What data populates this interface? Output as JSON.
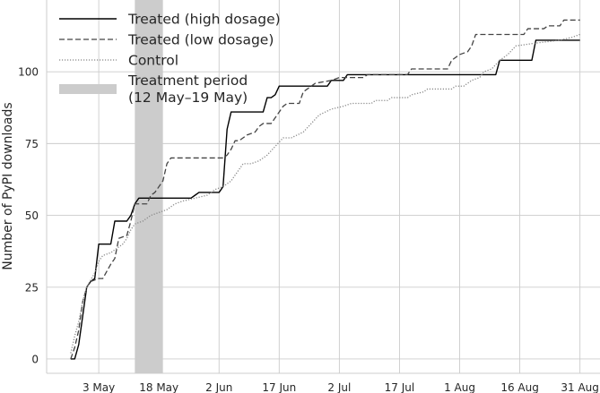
{
  "chart_data": {
    "type": "line",
    "title": "",
    "xlabel": "",
    "ylabel": "Number of PyPI downloads",
    "xlim": [
      "2023-04-20",
      "2023-09-05"
    ],
    "ylim": [
      -5,
      125
    ],
    "grid": true,
    "legend_position": "top-left",
    "x_ticks": [
      {
        "date": "2023-05-03",
        "label": "3 May"
      },
      {
        "date": "2023-05-18",
        "label": "18 May"
      },
      {
        "date": "2023-06-02",
        "label": "2 Jun"
      },
      {
        "date": "2023-06-17",
        "label": "17 Jun"
      },
      {
        "date": "2023-07-02",
        "label": "2 Jul"
      },
      {
        "date": "2023-07-17",
        "label": "17 Jul"
      },
      {
        "date": "2023-08-01",
        "label": "1 Aug"
      },
      {
        "date": "2023-08-16",
        "label": "16 Aug"
      },
      {
        "date": "2023-08-31",
        "label": "31 Aug"
      }
    ],
    "y_ticks": [
      {
        "value": 0,
        "label": "0"
      },
      {
        "value": 25,
        "label": "25"
      },
      {
        "value": 50,
        "label": "50"
      },
      {
        "value": 75,
        "label": "75"
      },
      {
        "value": 100,
        "label": "100"
      }
    ],
    "treatment_period": {
      "start": "2023-05-12",
      "end": "2023-05-19",
      "label_lines": [
        "Treatment period",
        "(12 May–19 May)"
      ],
      "color": "#cccccc"
    },
    "series": [
      {
        "name": "Treated (high dosage)",
        "color": "#000000",
        "style": "solid",
        "points": [
          [
            "2023-04-26",
            0
          ],
          [
            "2023-04-27",
            0
          ],
          [
            "2023-04-28",
            5
          ],
          [
            "2023-04-29",
            15
          ],
          [
            "2023-04-30",
            25
          ],
          [
            "2023-05-01",
            27
          ],
          [
            "2023-05-02",
            28
          ],
          [
            "2023-05-03",
            40
          ],
          [
            "2023-05-06",
            40
          ],
          [
            "2023-05-07",
            48
          ],
          [
            "2023-05-10",
            48
          ],
          [
            "2023-05-11",
            50
          ],
          [
            "2023-05-12",
            54
          ],
          [
            "2023-05-13",
            56
          ],
          [
            "2023-05-20",
            56
          ],
          [
            "2023-05-26",
            56
          ],
          [
            "2023-05-27",
            57
          ],
          [
            "2023-05-28",
            58
          ],
          [
            "2023-06-02",
            58
          ],
          [
            "2023-06-03",
            60
          ],
          [
            "2023-06-04",
            80
          ],
          [
            "2023-06-05",
            86
          ],
          [
            "2023-06-13",
            86
          ],
          [
            "2023-06-14",
            91
          ],
          [
            "2023-06-15",
            91
          ],
          [
            "2023-06-16",
            92
          ],
          [
            "2023-06-17",
            95
          ],
          [
            "2023-06-29",
            95
          ],
          [
            "2023-06-30",
            97
          ],
          [
            "2023-07-03",
            97
          ],
          [
            "2023-07-04",
            99
          ],
          [
            "2023-08-10",
            99
          ],
          [
            "2023-08-11",
            104
          ],
          [
            "2023-08-19",
            104
          ],
          [
            "2023-08-20",
            111
          ],
          [
            "2023-08-31",
            111
          ]
        ]
      },
      {
        "name": "Treated (low dosage)",
        "color": "#444444",
        "style": "dashed",
        "points": [
          [
            "2023-04-26",
            0
          ],
          [
            "2023-04-27",
            4
          ],
          [
            "2023-04-28",
            10
          ],
          [
            "2023-04-29",
            20
          ],
          [
            "2023-04-30",
            25
          ],
          [
            "2023-05-01",
            27
          ],
          [
            "2023-05-03",
            28
          ],
          [
            "2023-05-04",
            28
          ],
          [
            "2023-05-06",
            33
          ],
          [
            "2023-05-07",
            35
          ],
          [
            "2023-05-08",
            42
          ],
          [
            "2023-05-10",
            43
          ],
          [
            "2023-05-11",
            48
          ],
          [
            "2023-05-12",
            54
          ],
          [
            "2023-05-15",
            54
          ],
          [
            "2023-05-16",
            57
          ],
          [
            "2023-05-17",
            58
          ],
          [
            "2023-05-19",
            62
          ],
          [
            "2023-05-20",
            68
          ],
          [
            "2023-05-21",
            70
          ],
          [
            "2023-06-03",
            70
          ],
          [
            "2023-06-04",
            71
          ],
          [
            "2023-06-05",
            73
          ],
          [
            "2023-06-06",
            76
          ],
          [
            "2023-06-07",
            76
          ],
          [
            "2023-06-09",
            78
          ],
          [
            "2023-06-11",
            79
          ],
          [
            "2023-06-12",
            81
          ],
          [
            "2023-06-13",
            82
          ],
          [
            "2023-06-15",
            82
          ],
          [
            "2023-06-16",
            84
          ],
          [
            "2023-06-17",
            86
          ],
          [
            "2023-06-18",
            88
          ],
          [
            "2023-06-19",
            89
          ],
          [
            "2023-06-22",
            89
          ],
          [
            "2023-06-23",
            93
          ],
          [
            "2023-06-26",
            96
          ],
          [
            "2023-06-30",
            97
          ],
          [
            "2023-07-02",
            98
          ],
          [
            "2023-07-08",
            98
          ],
          [
            "2023-07-09",
            99
          ],
          [
            "2023-07-19",
            99
          ],
          [
            "2023-07-20",
            101
          ],
          [
            "2023-07-29",
            101
          ],
          [
            "2023-07-30",
            104
          ],
          [
            "2023-08-01",
            106
          ],
          [
            "2023-08-03",
            107
          ],
          [
            "2023-08-04",
            109
          ],
          [
            "2023-08-05",
            113
          ],
          [
            "2023-08-15",
            113
          ],
          [
            "2023-08-17",
            113
          ],
          [
            "2023-08-18",
            115
          ],
          [
            "2023-08-22",
            115
          ],
          [
            "2023-08-23",
            116
          ],
          [
            "2023-08-26",
            116
          ],
          [
            "2023-08-27",
            118
          ],
          [
            "2023-08-31",
            118
          ]
        ]
      },
      {
        "name": "Control",
        "color": "#888888",
        "style": "dotted",
        "points": [
          [
            "2023-04-26",
            2
          ],
          [
            "2023-04-27",
            8
          ],
          [
            "2023-04-28",
            13
          ],
          [
            "2023-04-29",
            20
          ],
          [
            "2023-04-30",
            25
          ],
          [
            "2023-05-02",
            30
          ],
          [
            "2023-05-03",
            34
          ],
          [
            "2023-05-04",
            36
          ],
          [
            "2023-05-06",
            37
          ],
          [
            "2023-05-07",
            38
          ],
          [
            "2023-05-09",
            40
          ],
          [
            "2023-05-10",
            42
          ],
          [
            "2023-05-11",
            45
          ],
          [
            "2023-05-12",
            47
          ],
          [
            "2023-05-14",
            48
          ],
          [
            "2023-05-16",
            50
          ],
          [
            "2023-05-18",
            51
          ],
          [
            "2023-05-20",
            52
          ],
          [
            "2023-05-22",
            54
          ],
          [
            "2023-05-24",
            55
          ],
          [
            "2023-05-27",
            56
          ],
          [
            "2023-05-30",
            57
          ],
          [
            "2023-06-01",
            59
          ],
          [
            "2023-06-03",
            60
          ],
          [
            "2023-06-05",
            62
          ],
          [
            "2023-06-07",
            66
          ],
          [
            "2023-06-08",
            68
          ],
          [
            "2023-06-10",
            68
          ],
          [
            "2023-06-12",
            69
          ],
          [
            "2023-06-14",
            71
          ],
          [
            "2023-06-16",
            74
          ],
          [
            "2023-06-18",
            77
          ],
          [
            "2023-06-20",
            77
          ],
          [
            "2023-06-23",
            79
          ],
          [
            "2023-06-25",
            82
          ],
          [
            "2023-06-27",
            85
          ],
          [
            "2023-06-30",
            87
          ],
          [
            "2023-07-03",
            88
          ],
          [
            "2023-07-05",
            89
          ],
          [
            "2023-07-10",
            89
          ],
          [
            "2023-07-11",
            90
          ],
          [
            "2023-07-14",
            90
          ],
          [
            "2023-07-15",
            91
          ],
          [
            "2023-07-19",
            91
          ],
          [
            "2023-07-20",
            92
          ],
          [
            "2023-07-23",
            93
          ],
          [
            "2023-07-24",
            94
          ],
          [
            "2023-07-30",
            94
          ],
          [
            "2023-07-31",
            95
          ],
          [
            "2023-08-02",
            95
          ],
          [
            "2023-08-04",
            97
          ],
          [
            "2023-08-06",
            98
          ],
          [
            "2023-08-07",
            100
          ],
          [
            "2023-08-09",
            101
          ],
          [
            "2023-08-11",
            104
          ],
          [
            "2023-08-13",
            106
          ],
          [
            "2023-08-15",
            109
          ],
          [
            "2023-08-20",
            110
          ],
          [
            "2023-08-26",
            111
          ],
          [
            "2023-08-29",
            112
          ],
          [
            "2023-08-31",
            113
          ]
        ]
      }
    ]
  }
}
